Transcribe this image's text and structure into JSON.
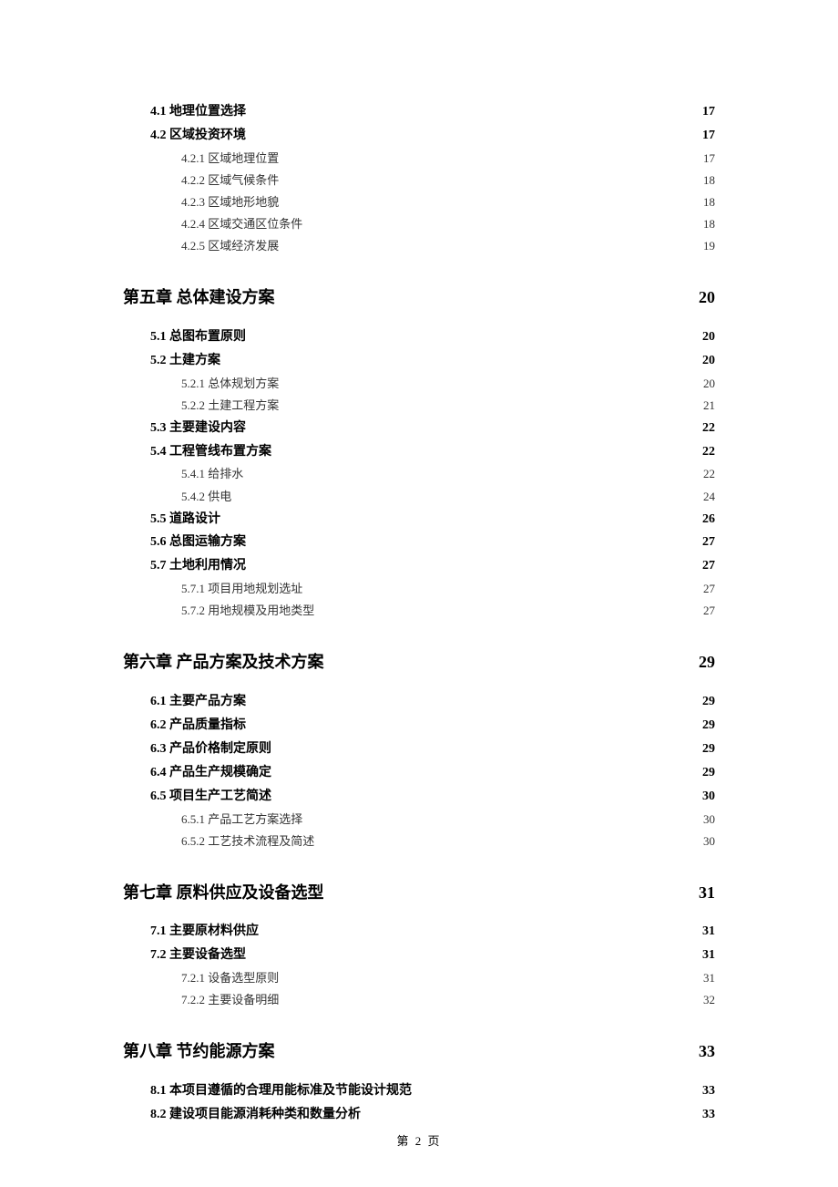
{
  "footer": "第 2 页",
  "entries": [
    {
      "level": "section",
      "label": "4.1 地理位置选择",
      "page": "17"
    },
    {
      "level": "section",
      "label": "4.2 区域投资环境",
      "page": "17"
    },
    {
      "level": "sub",
      "label": "4.2.1 区域地理位置",
      "page": "17"
    },
    {
      "level": "sub",
      "label": "4.2.2 区域气候条件",
      "page": "18"
    },
    {
      "level": "sub",
      "label": "4.2.3 区域地形地貌",
      "page": "18"
    },
    {
      "level": "sub",
      "label": "4.2.4 区域交通区位条件",
      "page": "18"
    },
    {
      "level": "sub",
      "label": "4.2.5 区域经济发展",
      "page": "19"
    },
    {
      "level": "chapter",
      "label": "第五章  总体建设方案",
      "page": "20"
    },
    {
      "level": "section",
      "label": "5.1 总图布置原则",
      "page": "20"
    },
    {
      "level": "section",
      "label": "5.2 土建方案",
      "page": "20"
    },
    {
      "level": "sub",
      "label": "5.2.1 总体规划方案",
      "page": "20"
    },
    {
      "level": "sub",
      "label": "5.2.2 土建工程方案",
      "page": "21"
    },
    {
      "level": "section",
      "label": "5.3 主要建设内容",
      "page": "22"
    },
    {
      "level": "section",
      "label": "5.4 工程管线布置方案",
      "page": "22"
    },
    {
      "level": "sub",
      "label": "5.4.1 给排水",
      "page": "22"
    },
    {
      "level": "sub",
      "label": "5.4.2 供电",
      "page": "24"
    },
    {
      "level": "section",
      "label": "5.5 道路设计",
      "page": "26"
    },
    {
      "level": "section",
      "label": "5.6 总图运输方案",
      "page": "27"
    },
    {
      "level": "section",
      "label": "5.7 土地利用情况",
      "page": "27"
    },
    {
      "level": "sub",
      "label": "5.7.1 项目用地规划选址",
      "page": "27"
    },
    {
      "level": "sub",
      "label": "5.7.2 用地规模及用地类型",
      "page": "27"
    },
    {
      "level": "chapter",
      "label": "第六章  产品方案及技术方案",
      "page": "29"
    },
    {
      "level": "section",
      "label": "6.1 主要产品方案",
      "page": "29"
    },
    {
      "level": "section",
      "label": "6.2 产品质量指标",
      "page": "29"
    },
    {
      "level": "section",
      "label": "6.3 产品价格制定原则",
      "page": "29"
    },
    {
      "level": "section",
      "label": "6.4 产品生产规模确定",
      "page": "29"
    },
    {
      "level": "section",
      "label": "6.5 项目生产工艺简述",
      "page": "30"
    },
    {
      "level": "sub",
      "label": "6.5.1 产品工艺方案选择",
      "page": "30"
    },
    {
      "level": "sub",
      "label": "6.5.2 工艺技术流程及简述",
      "page": "30"
    },
    {
      "level": "chapter",
      "label": "第七章  原料供应及设备选型",
      "page": "31"
    },
    {
      "level": "section",
      "label": "7.1 主要原材料供应",
      "page": "31"
    },
    {
      "level": "section",
      "label": "7.2 主要设备选型",
      "page": "31"
    },
    {
      "level": "sub",
      "label": "7.2.1 设备选型原则",
      "page": "31"
    },
    {
      "level": "sub",
      "label": "7.2.2 主要设备明细",
      "page": "32"
    },
    {
      "level": "chapter",
      "label": "第八章  节约能源方案",
      "page": "33"
    },
    {
      "level": "section",
      "label": "8.1 本项目遵循的合理用能标准及节能设计规范",
      "page": "33"
    },
    {
      "level": "section",
      "label": "8.2 建设项目能源消耗种类和数量分析",
      "page": "33"
    }
  ]
}
